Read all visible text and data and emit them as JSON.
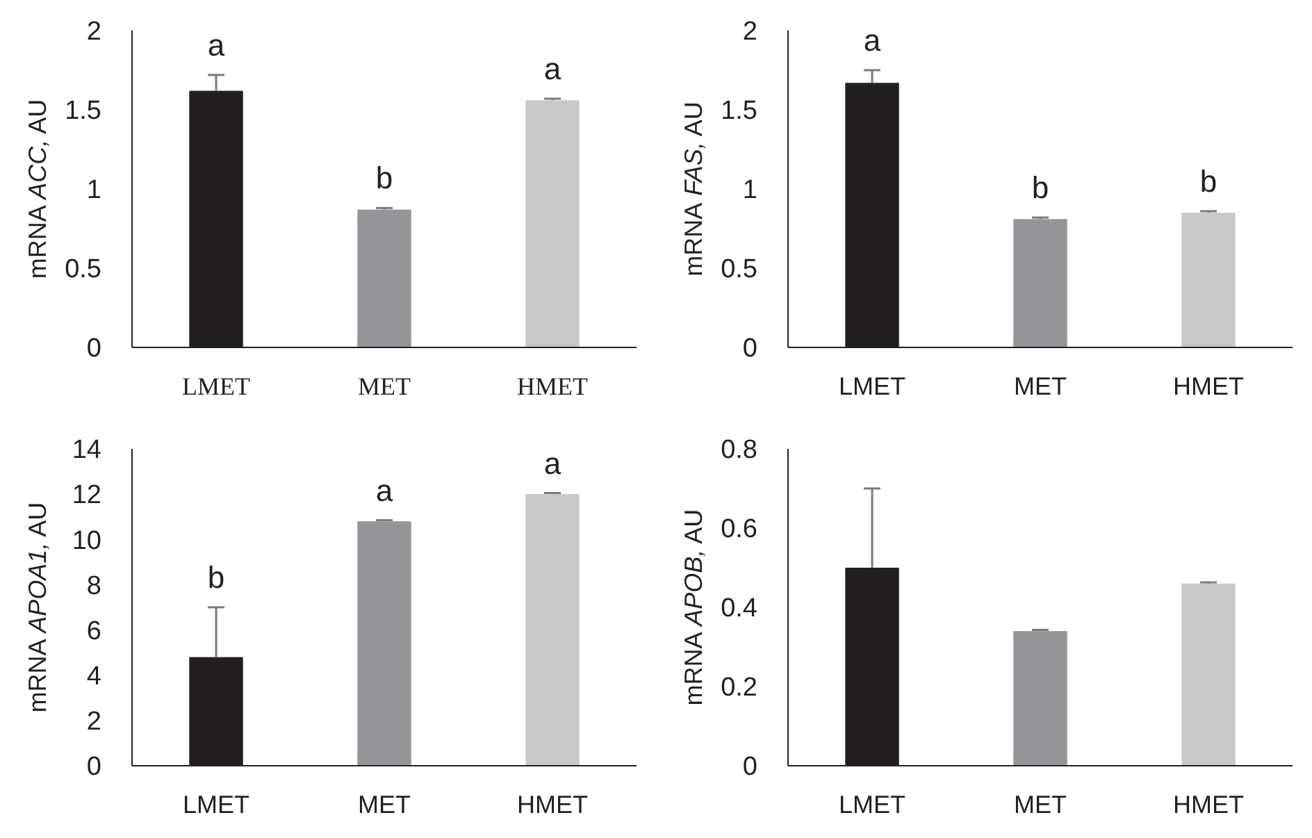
{
  "chart_data": [
    {
      "type": "bar",
      "ylabel": "mRNA ACC, AU",
      "categories": [
        "LMET",
        "MET",
        "HMET"
      ],
      "values": [
        1.62,
        0.87,
        1.56
      ],
      "errors": [
        0.1,
        0.01,
        0.01
      ],
      "colors": [
        "#231f20",
        "#939598",
        "#c7c8ca"
      ],
      "ylim": [
        0,
        2
      ],
      "yticks": [
        0,
        0.5,
        1,
        1.5,
        2
      ],
      "annotations": [
        "a",
        "b",
        "a"
      ]
    },
    {
      "type": "bar",
      "ylabel": "mRNA FAS, AU",
      "categories": [
        "LMET",
        "MET",
        "HMET"
      ],
      "values": [
        1.67,
        0.81,
        0.85
      ],
      "errors": [
        0.08,
        0.01,
        0.01
      ],
      "colors": [
        "#231f20",
        "#939598",
        "#c7c8ca"
      ],
      "ylim": [
        0,
        2
      ],
      "yticks": [
        0,
        0.5,
        1,
        1.5,
        2
      ],
      "annotations": [
        "a",
        "b",
        "b"
      ]
    },
    {
      "type": "bar",
      "ylabel": "mRNA APOA1, AU",
      "categories": [
        "LMET",
        "MET",
        "HMET"
      ],
      "values": [
        4.8,
        10.8,
        12.0
      ],
      "errors": [
        2.2,
        0.05,
        0.05
      ],
      "colors": [
        "#231f20",
        "#939598",
        "#c7c8ca"
      ],
      "ylim": [
        0,
        14
      ],
      "yticks": [
        0,
        2,
        4,
        6,
        8,
        10,
        12,
        14
      ],
      "annotations": [
        "b",
        "a",
        "a"
      ]
    },
    {
      "type": "bar",
      "ylabel": "mRNA APOB, AU",
      "categories": [
        "LMET",
        "MET",
        "HMET"
      ],
      "values": [
        0.5,
        0.34,
        0.46
      ],
      "errors": [
        0.2,
        0.003,
        0.003
      ],
      "colors": [
        "#231f20",
        "#939598",
        "#c7c8ca"
      ],
      "ylim": [
        0,
        0.8
      ],
      "yticks": [
        0,
        0.2,
        0.4,
        0.6,
        0.8
      ]
    }
  ]
}
